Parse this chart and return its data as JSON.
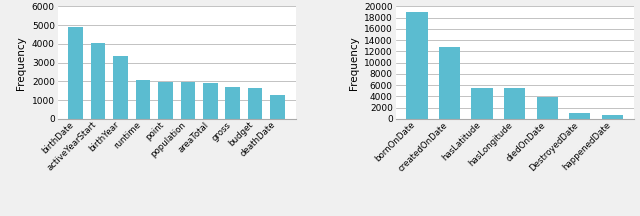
{
  "chart1": {
    "categories": [
      "birthDate",
      "activeYearStart",
      "birthYear",
      "runtime",
      "point",
      "population",
      "areaTotal",
      "gross",
      "budget",
      "deathDate"
    ],
    "values": [
      4900,
      4050,
      3350,
      2075,
      1975,
      1950,
      1925,
      1700,
      1625,
      1275
    ],
    "ylim": [
      0,
      6000
    ],
    "yticks": [
      0,
      1000,
      2000,
      3000,
      4000,
      5000,
      6000
    ],
    "ylabel": "Frequency",
    "bar_color": "#5bbcd0"
  },
  "chart2": {
    "categories": [
      "bornOnDate",
      "createdOnDate",
      "hasLatitude",
      "hasLongitude",
      "diedOnDate",
      "DestroyedDate",
      "happenedDate"
    ],
    "values": [
      19000,
      12750,
      5500,
      5450,
      3800,
      1000,
      750
    ],
    "ylim": [
      0,
      20000
    ],
    "yticks": [
      0,
      2000,
      4000,
      6000,
      8000,
      10000,
      12000,
      14000,
      16000,
      18000,
      20000
    ],
    "ylabel": "Frequency",
    "bar_color": "#5bbcd0"
  },
  "fig_bg": "#f0f0f0",
  "plot_bg": "#ffffff"
}
